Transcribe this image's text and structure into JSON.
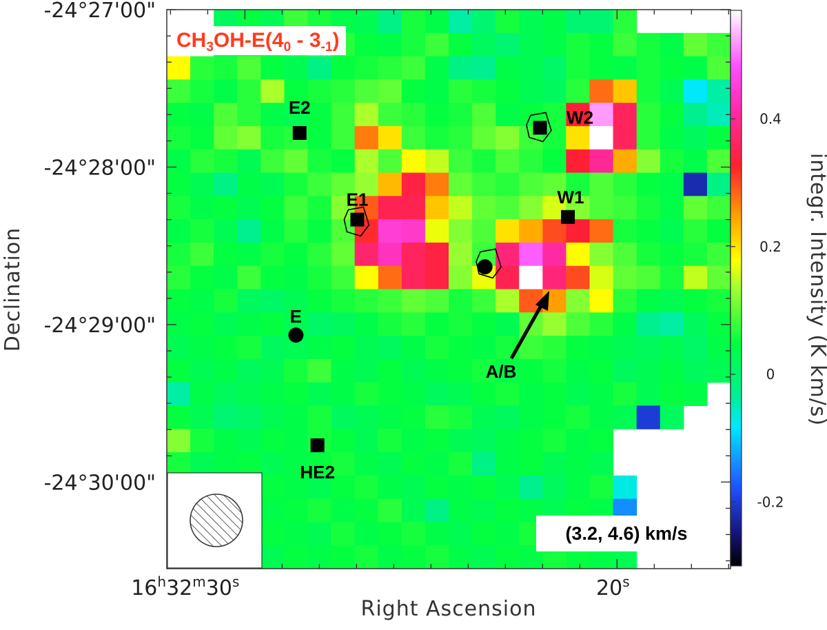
{
  "chart_data": {
    "type": "heatmap",
    "title": "CH3OH-E (4_0 - 3_-1)",
    "title_parts": {
      "molecule": "CH",
      "sub1": "3",
      "mid": "OH-E(4",
      "sub2": "0",
      "dash": " - 3",
      "sub3": "-1",
      "close": ")"
    },
    "velocity_range_label": "(3.2, 4.6) km/s",
    "xlabel": "Right Ascension",
    "ylabel": "Declination",
    "colorbar_label": "integr. Intensity (K km/s)",
    "colorbar_range": [
      -0.3,
      0.57
    ],
    "colorbar_ticks": [
      {
        "value": -0.2,
        "label": "-0.2"
      },
      {
        "value": 0,
        "label": "0"
      },
      {
        "value": 0.2,
        "label": "0.2"
      },
      {
        "value": 0.4,
        "label": "0.4"
      }
    ],
    "dec_ticks": [
      {
        "dec_arcsec": 0,
        "label": "-24°27'00\""
      },
      {
        "dec_arcsec": 60,
        "label": "-24°28'00\""
      },
      {
        "dec_arcsec": 120,
        "label": "-24°29'00\""
      },
      {
        "dec_arcsec": 180,
        "label": "-24°30'00\""
      }
    ],
    "ra_ticks": [
      {
        "ra_sec": 30,
        "label_main": "16",
        "h": "h",
        "mid": "32",
        "m": "m",
        "sec": "30",
        "s": "s"
      },
      {
        "ra_sec": 20,
        "label_main": "20",
        "s": "s"
      }
    ],
    "ra_range_sec": [
      32.1,
      16.95
    ],
    "dec_range_arcsec": [
      0,
      213
    ],
    "grid": false,
    "colormap": [
      "#000000",
      "#1010a0",
      "#2050ff",
      "#00e8ff",
      "#00f080",
      "#00ff40",
      "#a0ff30",
      "#ffff00",
      "#ffb000",
      "#ff2030",
      "#ff30c0",
      "#ff60ff",
      "#ffffff"
    ],
    "pixel_grid": {
      "cols": 24,
      "rows": 24,
      "note": "integrated intensity in K km/s, null = no data",
      "values": [
        [
          null,
          null,
          0.02,
          0.05,
          0.03,
          0.08,
          0.06,
          0.04,
          0.03,
          -0.02,
          0.06,
          0.04,
          -0.04,
          0.0,
          0.06,
          0.03,
          0.04,
          0.0,
          0.0,
          0.07,
          null,
          null,
          null,
          null
        ],
        [
          null,
          null,
          0.05,
          0.03,
          0.06,
          0.08,
          0.1,
          0.07,
          0.05,
          0.04,
          0.06,
          0.08,
          0.05,
          0.02,
          0.0,
          0.03,
          0.04,
          0.06,
          0.05,
          0.08,
          0.06,
          0.04,
          0.1,
          0.08
        ],
        [
          0.18,
          0.07,
          0.06,
          0.09,
          0.05,
          0.03,
          -0.02,
          0.05,
          0.06,
          0.07,
          0.08,
          0.04,
          -0.02,
          -0.03,
          0.04,
          0.03,
          0.01,
          0.06,
          0.05,
          0.04,
          0.06,
          0.05,
          0.04,
          0.09
        ],
        [
          0.08,
          0.06,
          0.04,
          0.07,
          0.14,
          0.05,
          0.06,
          0.07,
          0.09,
          0.1,
          0.05,
          0.04,
          0.07,
          0.06,
          0.05,
          0.03,
          0.02,
          0.07,
          0.28,
          0.22,
          0.06,
          0.03,
          -0.08,
          -0.04
        ],
        [
          0.05,
          0.04,
          0.09,
          0.07,
          0.04,
          0.03,
          0.05,
          0.08,
          0.14,
          0.08,
          0.07,
          0.05,
          0.06,
          0.09,
          0.04,
          0.05,
          0.06,
          0.33,
          0.52,
          0.36,
          0.07,
          0.05,
          -0.03,
          -0.05
        ],
        [
          0.06,
          0.05,
          0.1,
          0.12,
          0.06,
          0.07,
          0.05,
          0.08,
          0.27,
          0.2,
          0.08,
          0.06,
          0.07,
          0.1,
          0.12,
          0.08,
          0.06,
          0.2,
          0.57,
          0.36,
          0.07,
          0.04,
          0.02,
          0.05
        ],
        [
          0.04,
          0.07,
          0.06,
          0.03,
          0.08,
          0.1,
          0.06,
          0.05,
          0.14,
          0.09,
          0.18,
          0.15,
          0.08,
          0.06,
          0.09,
          0.07,
          0.05,
          0.33,
          0.4,
          0.24,
          0.12,
          0.06,
          0.04,
          0.09
        ],
        [
          0.05,
          0.03,
          -0.02,
          0.04,
          0.03,
          0.06,
          0.08,
          0.1,
          0.13,
          0.23,
          0.34,
          0.27,
          0.1,
          0.08,
          0.07,
          0.09,
          0.1,
          0.06,
          0.09,
          0.07,
          0.05,
          0.04,
          -0.22,
          -0.02
        ],
        [
          0.06,
          0.04,
          0.05,
          0.03,
          0.05,
          0.08,
          0.06,
          0.12,
          0.29,
          0.35,
          0.35,
          0.22,
          0.15,
          0.1,
          0.09,
          0.12,
          0.16,
          0.12,
          0.09,
          0.08,
          0.06,
          0.04,
          0.1,
          0.08
        ],
        [
          0.04,
          0.06,
          0.03,
          -0.03,
          0.04,
          0.07,
          0.05,
          0.09,
          0.32,
          0.45,
          0.44,
          0.17,
          0.12,
          0.09,
          0.2,
          0.24,
          0.3,
          0.33,
          0.28,
          0.06,
          0.05,
          0.03,
          0.07,
          0.05
        ],
        [
          0.06,
          0.08,
          0.05,
          0.04,
          0.06,
          0.05,
          0.07,
          0.1,
          0.37,
          0.43,
          0.36,
          0.34,
          0.13,
          0.08,
          0.38,
          0.49,
          0.41,
          0.18,
          0.12,
          0.09,
          0.06,
          0.05,
          0.06,
          0.08
        ],
        [
          0.07,
          0.05,
          0.04,
          0.08,
          0.05,
          0.04,
          0.06,
          0.08,
          0.18,
          0.28,
          0.36,
          0.34,
          0.12,
          0.17,
          0.35,
          0.6,
          0.38,
          0.3,
          0.16,
          0.1,
          0.09,
          0.06,
          0.15,
          0.1
        ],
        [
          0.05,
          0.04,
          0.06,
          0.02,
          0.01,
          0.03,
          0.05,
          0.06,
          0.07,
          0.08,
          0.1,
          0.09,
          0.06,
          0.08,
          0.14,
          0.29,
          0.25,
          0.12,
          0.18,
          0.07,
          0.04,
          0.03,
          0.05,
          0.06
        ],
        [
          0.04,
          0.05,
          0.03,
          0.04,
          0.05,
          0.03,
          0.01,
          0.02,
          0.04,
          0.06,
          0.07,
          0.05,
          0.06,
          0.05,
          0.03,
          0.1,
          0.13,
          0.09,
          0.07,
          0.04,
          -0.03,
          -0.04,
          0.02,
          0.05
        ],
        [
          0.03,
          0.04,
          0.05,
          0.06,
          0.02,
          0.03,
          0.04,
          0.05,
          0.03,
          0.02,
          0.04,
          0.06,
          0.05,
          0.04,
          0.06,
          0.08,
          0.07,
          0.05,
          0.04,
          0.03,
          0.02,
          0.03,
          0.01,
          0.04
        ],
        [
          0.05,
          0.03,
          0.04,
          0.02,
          0.03,
          0.06,
          0.08,
          0.04,
          0.03,
          0.05,
          0.03,
          0.04,
          0.05,
          0.06,
          0.04,
          0.05,
          0.06,
          0.04,
          0.05,
          0.02,
          0.03,
          0.04,
          0.02,
          0.03
        ],
        [
          -0.04,
          0.04,
          0.02,
          0.03,
          0.04,
          0.05,
          0.03,
          0.04,
          0.06,
          0.05,
          0.04,
          0.02,
          0.03,
          0.05,
          0.06,
          0.04,
          0.05,
          0.03,
          0.04,
          0.06,
          0.03,
          0.05,
          0.04,
          null
        ],
        [
          0.05,
          0.03,
          0.0,
          0.01,
          0.03,
          0.04,
          0.06,
          0.02,
          0.03,
          0.04,
          0.05,
          0.07,
          0.06,
          0.03,
          0.02,
          0.04,
          0.05,
          0.06,
          0.04,
          0.03,
          -0.2,
          0.02,
          null,
          null
        ],
        [
          0.12,
          0.06,
          0.04,
          0.03,
          0.05,
          0.04,
          0.06,
          0.05,
          0.03,
          0.06,
          0.04,
          0.05,
          0.03,
          0.02,
          0.04,
          0.05,
          0.06,
          0.04,
          0.05,
          null,
          null,
          null,
          null,
          null
        ],
        [
          0.06,
          0.03,
          0.04,
          0.05,
          0.03,
          0.04,
          0.05,
          0.06,
          0.04,
          0.03,
          0.05,
          0.04,
          0.06,
          -0.02,
          0.04,
          0.05,
          0.03,
          0.04,
          0.03,
          null,
          null,
          null,
          null,
          null
        ],
        [
          null,
          null,
          null,
          null,
          0.05,
          0.04,
          0.03,
          0.05,
          0.06,
          0.04,
          0.03,
          0.05,
          0.04,
          0.05,
          0.03,
          -0.03,
          0.02,
          0.04,
          0.06,
          -0.07,
          null,
          null,
          null,
          null
        ],
        [
          null,
          null,
          null,
          null,
          0.04,
          0.05,
          0.06,
          0.04,
          0.05,
          0.07,
          0.03,
          -0.02,
          0.04,
          0.03,
          0.05,
          0.04,
          0.03,
          0.05,
          0.04,
          -0.14,
          null,
          null,
          null,
          null
        ],
        [
          null,
          null,
          null,
          null,
          0.05,
          0.04,
          0.03,
          0.06,
          0.04,
          0.05,
          0.06,
          0.04,
          0.03,
          0.05,
          0.04,
          0.06,
          0.05,
          0.04,
          0.03,
          0.05,
          null,
          null,
          null,
          null
        ],
        [
          null,
          null,
          null,
          null,
          0.03,
          0.05,
          0.04,
          0.05,
          0.06,
          0.04,
          0.05,
          0.06,
          0.04,
          0.03,
          0.05,
          0.04,
          0.06,
          0.05,
          0.04,
          0.03,
          null,
          null,
          null,
          null
        ]
      ]
    },
    "sources": [
      {
        "label": "E2",
        "marker": "square",
        "ra_sec": 28.53,
        "dec_arcsec": 47
      },
      {
        "label": "E1",
        "marker": "square",
        "ra_sec": 26.98,
        "dec_arcsec": 80
      },
      {
        "label": "W2",
        "marker": "square",
        "ra_sec": 22.07,
        "dec_arcsec": 45
      },
      {
        "label": "W1",
        "marker": "square",
        "ra_sec": 21.32,
        "dec_arcsec": 79
      },
      {
        "label": "A/B",
        "marker": "circle",
        "ra_sec": 23.55,
        "dec_arcsec": 98
      },
      {
        "label": "E",
        "marker": "circle",
        "ra_sec": 28.63,
        "dec_arcsec": 124
      },
      {
        "label": "HE2",
        "marker": "square",
        "ra_sec": 28.05,
        "dec_arcsec": 166
      }
    ],
    "annotations": {
      "arrow_label": "A/B",
      "beam": "hatched circular beam ellipse, lower-left corner"
    },
    "contours": [
      {
        "ra_sec": 22.1,
        "dec_arcsec": 45
      },
      {
        "ra_sec": 27.0,
        "dec_arcsec": 81
      },
      {
        "ra_sec": 23.45,
        "dec_arcsec": 97
      }
    ]
  }
}
